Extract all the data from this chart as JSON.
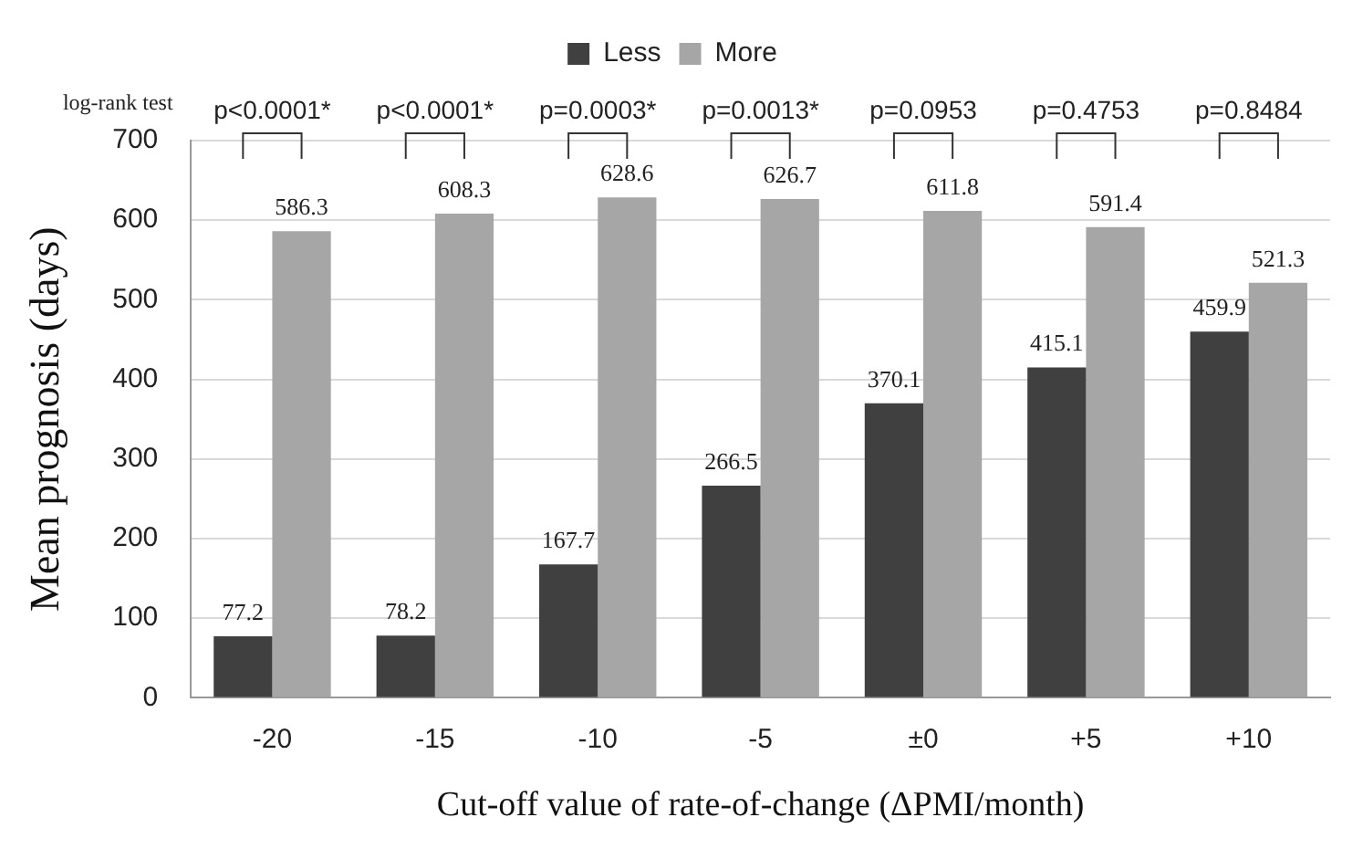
{
  "chart_data": {
    "type": "bar",
    "xlabel": "Cut-off value of rate-of-change (ΔPMI/month)",
    "ylabel": "Mean prognosis (days)",
    "categories": [
      "-20",
      "-15",
      "-10",
      "-5",
      "±0",
      "+5",
      "+10"
    ],
    "series": [
      {
        "name": "Less",
        "color": "#404040",
        "values": [
          77.2,
          78.2,
          167.7,
          266.5,
          370.1,
          415.1,
          459.9
        ]
      },
      {
        "name": "More",
        "color": "#a6a6a6",
        "values": [
          586.3,
          608.3,
          628.6,
          626.7,
          611.8,
          591.4,
          521.3
        ]
      }
    ],
    "ylim": [
      0,
      700
    ],
    "yticks": [
      0,
      100,
      200,
      300,
      400,
      500,
      600,
      700
    ],
    "grid": "y",
    "legend": "top",
    "data_labels": true,
    "annotations": [
      "log-rank test",
      "p<0.0001*",
      "p<0.0001*",
      "p=0.0003*",
      "p=0.0013*",
      "p=0.0953",
      "p=0.4753",
      "p=0.8484"
    ]
  }
}
